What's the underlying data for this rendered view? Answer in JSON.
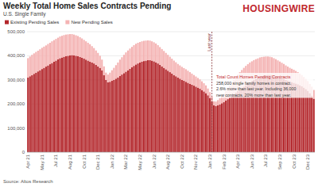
{
  "chart_data": {
    "type": "bar",
    "title": "Weekly Total Home Sales Contracts Pending",
    "subtitle": "U.S. Single Family",
    "logo": "HOUSINGWIRE",
    "source": "Source: Altos Research",
    "stacked": true,
    "grid": true,
    "legend": "top-left",
    "ylim": [
      0,
      500000
    ],
    "yticks": [
      0,
      {
        "value": 100000,
        "label": "100,000"
      },
      {
        "value": 200000,
        "label": "200,000"
      },
      {
        "value": 300000,
        "label": "300,000"
      },
      {
        "value": 400000,
        "label": "400,000"
      },
      {
        "value": 500000,
        "label": "500,000"
      }
    ],
    "categories": [
      "Apr 21",
      null,
      null,
      null,
      null,
      null,
      null,
      "May 21",
      null,
      null,
      null,
      null,
      null,
      null,
      "Jul 21",
      null,
      null,
      null,
      null,
      null,
      null,
      "Aug 21",
      null,
      null,
      null,
      null,
      null,
      null,
      "Oct 21",
      null,
      null,
      null,
      null,
      null,
      null,
      "Dec 21",
      null,
      null,
      null,
      null,
      null,
      null,
      "Jan 22",
      null,
      null,
      null,
      null,
      null,
      null,
      "Mar 22",
      null,
      null,
      null,
      null,
      null,
      null,
      "May 22",
      null,
      null,
      null,
      null,
      null,
      null,
      "Jun 22",
      null,
      null,
      null,
      null,
      null,
      null,
      "Aug 22",
      null,
      null,
      null,
      null,
      null,
      null,
      "Oct 22",
      null,
      null,
      null,
      null,
      null,
      null,
      "Nov 22",
      null,
      null,
      null,
      null,
      null,
      null,
      "Jan 23",
      null,
      null,
      null,
      null,
      null,
      null,
      "Feb 23",
      null,
      null,
      null,
      null,
      null,
      null,
      "Apr 23",
      null,
      null,
      null,
      null,
      null,
      null,
      "Jun 23",
      null,
      null,
      null,
      null,
      null,
      null,
      "Jul 23",
      null,
      null,
      null,
      null,
      null,
      null,
      "Sep 23",
      null,
      null,
      null,
      null,
      null,
      null,
      "Oct 23",
      null,
      null,
      null,
      null,
      null,
      null,
      "Dec 23",
      null,
      null,
      null
    ],
    "series": [
      {
        "name": "Existing Pending Sales",
        "color": "#b3262b",
        "values": [
          310000,
          315000,
          320000,
          325000,
          330000,
          335000,
          340000,
          345000,
          350000,
          355000,
          360000,
          365000,
          370000,
          375000,
          380000,
          385000,
          390000,
          393000,
          396000,
          398000,
          400000,
          402000,
          403000,
          402000,
          400000,
          398000,
          395000,
          392000,
          388000,
          384000,
          380000,
          376000,
          372000,
          368000,
          362000,
          356000,
          350000,
          340000,
          320000,
          300000,
          290000,
          292000,
          296000,
          300000,
          305000,
          310000,
          316000,
          322000,
          328000,
          334000,
          340000,
          346000,
          352000,
          358000,
          364000,
          368000,
          372000,
          376000,
          378000,
          380000,
          382000,
          382000,
          380000,
          377000,
          373000,
          368000,
          362000,
          356000,
          350000,
          344000,
          338000,
          332000,
          326000,
          320000,
          315000,
          310000,
          305000,
          300000,
          296000,
          292000,
          288000,
          284000,
          280000,
          276000,
          272000,
          268000,
          264000,
          258000,
          252000,
          245000,
          236000,
          225000,
          210000,
          195000,
          192000,
          194000,
          198000,
          203000,
          208000,
          214000,
          220000,
          226000,
          233000,
          240000,
          247000,
          254000,
          260000,
          266000,
          272000,
          278000,
          284000,
          290000,
          295000,
          300000,
          305000,
          309000,
          313000,
          316000,
          318000,
          320000,
          321000,
          321000,
          320000,
          318000,
          316000,
          313000,
          310000,
          307000,
          304000,
          300000,
          297000,
          294000,
          291000,
          288000,
          285000,
          282000,
          278000,
          274000,
          268000,
          262000,
          255000,
          245000,
          235000,
          222000
        ]
      },
      {
        "name": "New Pending Sales",
        "color": "#f4b3b3",
        "values": [
          80000,
          82000,
          84000,
          85000,
          86000,
          86000,
          87000,
          88000,
          88000,
          88000,
          89000,
          89000,
          90000,
          90000,
          90000,
          90000,
          90000,
          90000,
          90000,
          90000,
          89000,
          88000,
          87000,
          86000,
          85000,
          84000,
          82000,
          80000,
          78000,
          76000,
          74000,
          72000,
          68000,
          64000,
          60000,
          56000,
          50000,
          44000,
          36000,
          30000,
          32000,
          38000,
          44000,
          50000,
          56000,
          62000,
          68000,
          72000,
          76000,
          80000,
          82000,
          84000,
          85000,
          86000,
          86000,
          86000,
          85000,
          84000,
          84000,
          83000,
          82000,
          81000,
          80000,
          79000,
          78000,
          76000,
          74000,
          72000,
          70000,
          68000,
          66000,
          64000,
          62000,
          60000,
          58000,
          56000,
          55000,
          54000,
          53000,
          52000,
          50000,
          48000,
          46000,
          44000,
          42000,
          40000,
          38000,
          36000,
          34000,
          32000,
          28000,
          24000,
          20000,
          16000,
          18000,
          22000,
          26000,
          30000,
          35000,
          40000,
          45000,
          50000,
          55000,
          60000,
          64000,
          68000,
          72000,
          75000,
          78000,
          80000,
          81000,
          82000,
          82000,
          82000,
          81000,
          80000,
          80000,
          79000,
          78000,
          77000,
          76000,
          75000,
          74000,
          72000,
          70000,
          68000,
          66000,
          64000,
          62000,
          60000,
          58000,
          56000,
          55000,
          54000,
          52000,
          50000,
          48000,
          46000,
          44000,
          42000,
          40000,
          38000,
          37000,
          36000
        ]
      }
    ],
    "annotations": [
      {
        "text": "Last year",
        "index": 92
      },
      {
        "title": "Total Count Homes Pending Contracts",
        "lines": [
          "258,000 single family homes in contract.",
          "2.6% more than last year. Including 36,000",
          "new contracts. 20% more than last year."
        ]
      }
    ]
  }
}
